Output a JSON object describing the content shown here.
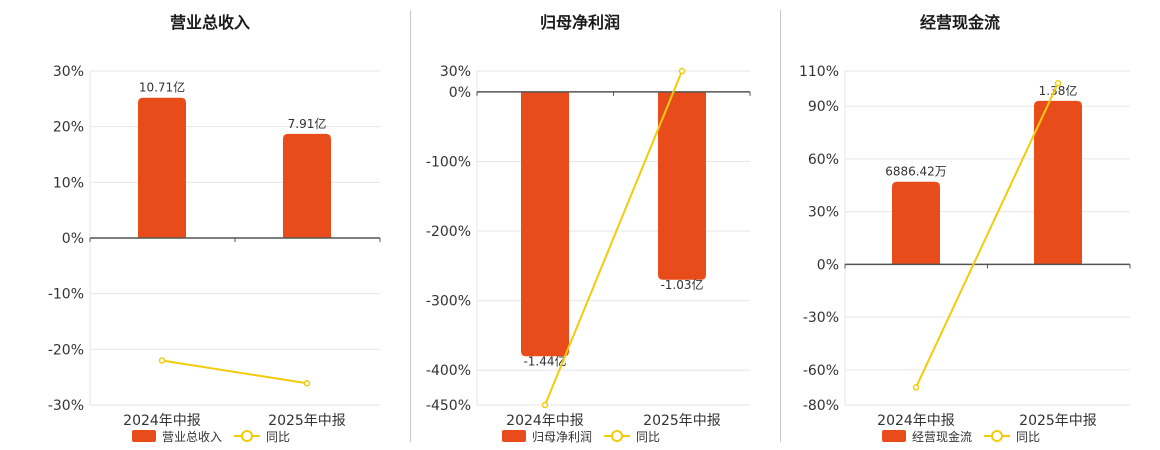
{
  "colors": {
    "bar": "#e84c1b",
    "line": "#f2cc0c",
    "grid": "#e6e6e6",
    "axis": "#555555"
  },
  "chart_data": [
    {
      "type": "bar",
      "title": "营业总收入",
      "categories": [
        "2024年中报",
        "2025年中报"
      ],
      "series": [
        {
          "name": "营业总收入",
          "type": "bar",
          "values": [
            25.2,
            18.7
          ],
          "data_labels": [
            "10.71亿",
            "7.91亿"
          ]
        },
        {
          "name": "同比",
          "type": "line",
          "values": [
            -22.0,
            -26.1
          ]
        }
      ],
      "ylim": [
        -30,
        30
      ],
      "yticks": [
        30,
        20,
        10,
        0,
        -10,
        -20,
        -30
      ],
      "ytick_labels": [
        "30%",
        "20%",
        "10%",
        "0%",
        "-10%",
        "-20%",
        "-30%"
      ],
      "grid": true,
      "legend": "bottom"
    },
    {
      "type": "bar",
      "title": "归母净利润",
      "categories": [
        "2024年中报",
        "2025年中报"
      ],
      "series": [
        {
          "name": "归母净利润",
          "type": "bar",
          "values": [
            -380,
            -270
          ],
          "data_labels": [
            "-1.44亿",
            "-1.03亿"
          ]
        },
        {
          "name": "同比",
          "type": "line",
          "values": [
            -450,
            30
          ]
        }
      ],
      "ylim": [
        -450,
        30
      ],
      "yticks": [
        30,
        0,
        -100,
        -200,
        -300,
        -400,
        -450
      ],
      "ytick_labels": [
        "30%",
        "0%",
        "-100%",
        "-200%",
        "-300%",
        "-400%",
        "-450%"
      ],
      "grid": true,
      "legend": "bottom"
    },
    {
      "type": "bar",
      "title": "经营现金流",
      "categories": [
        "2024年中报",
        "2025年中报"
      ],
      "series": [
        {
          "name": "经营现金流",
          "type": "bar",
          "values": [
            47,
            93
          ],
          "data_labels": [
            "6886.42万",
            "1.38亿"
          ]
        },
        {
          "name": "同比",
          "type": "line",
          "values": [
            -70,
            103
          ]
        }
      ],
      "ylim": [
        -80,
        110
      ],
      "yticks": [
        110,
        90,
        60,
        30,
        0,
        -30,
        -60,
        -80
      ],
      "ytick_labels": [
        "110%",
        "90%",
        "60%",
        "30%",
        "0%",
        "-30%",
        "-60%",
        "-80%"
      ],
      "grid": true,
      "legend": "bottom"
    }
  ]
}
